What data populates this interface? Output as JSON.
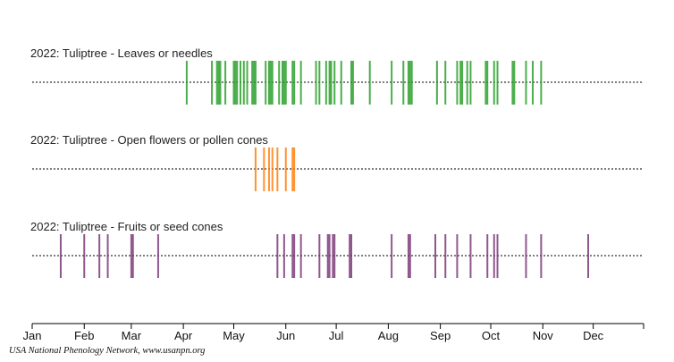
{
  "chart_data": {
    "type": "timeline",
    "year": 2022,
    "x_axis": {
      "range": [
        "2022-01-01",
        "2022-12-31"
      ],
      "tick_labels": [
        "Jan",
        "Feb",
        "Mar",
        "Apr",
        "May",
        "Jun",
        "Jul",
        "Aug",
        "Sep",
        "Oct",
        "Nov",
        "Dec"
      ]
    },
    "series": [
      {
        "name": "2022: Tuliptree - Leaves or needles",
        "color": "#2ca02c",
        "dates": [
          "2022-04-03",
          "2022-04-18",
          "2022-04-21",
          "2022-04-22",
          "2022-04-23",
          "2022-04-26",
          "2022-05-01",
          "2022-05-02",
          "2022-05-03",
          "2022-05-05",
          "2022-05-07",
          "2022-05-09",
          "2022-05-12",
          "2022-05-13",
          "2022-05-14",
          "2022-05-20",
          "2022-05-22",
          "2022-05-23",
          "2022-05-24",
          "2022-05-28",
          "2022-05-30",
          "2022-05-31",
          "2022-06-01",
          "2022-06-05",
          "2022-06-06",
          "2022-06-10",
          "2022-06-19",
          "2022-06-21",
          "2022-06-25",
          "2022-06-27",
          "2022-06-28",
          "2022-06-30",
          "2022-07-04",
          "2022-07-10",
          "2022-07-11",
          "2022-07-21",
          "2022-08-03",
          "2022-08-10",
          "2022-08-13",
          "2022-08-14",
          "2022-08-15",
          "2022-08-30",
          "2022-09-04",
          "2022-09-11",
          "2022-09-13",
          "2022-09-14",
          "2022-09-17",
          "2022-09-19",
          "2022-09-28",
          "2022-09-29",
          "2022-10-03",
          "2022-10-05",
          "2022-10-14",
          "2022-10-15",
          "2022-10-22",
          "2022-10-26",
          "2022-10-31"
        ]
      },
      {
        "name": "2022: Tuliptree - Open flowers or pollen cones",
        "color": "#ff7f0e",
        "dates": [
          "2022-05-14",
          "2022-05-19",
          "2022-05-22",
          "2022-05-24",
          "2022-05-27",
          "2022-06-01",
          "2022-06-05",
          "2022-06-06"
        ]
      },
      {
        "name": "2022: Tuliptree - Fruits or seed cones",
        "color": "#7b3a78",
        "dates": [
          "2022-01-18",
          "2022-02-01",
          "2022-02-10",
          "2022-02-15",
          "2022-03-01",
          "2022-03-02",
          "2022-03-17",
          "2022-05-27",
          "2022-05-31",
          "2022-06-05",
          "2022-06-06",
          "2022-06-10",
          "2022-06-21",
          "2022-06-26",
          "2022-06-27",
          "2022-06-29",
          "2022-06-30",
          "2022-07-09",
          "2022-07-10",
          "2022-08-03",
          "2022-08-13",
          "2022-08-14",
          "2022-08-29",
          "2022-09-04",
          "2022-09-11",
          "2022-09-19",
          "2022-09-29",
          "2022-10-03",
          "2022-10-05",
          "2022-10-22",
          "2022-10-31",
          "2022-11-28"
        ]
      }
    ],
    "grid": false,
    "legend": "none"
  },
  "credit": "USA National Phenology Network, www.usanpn.org"
}
